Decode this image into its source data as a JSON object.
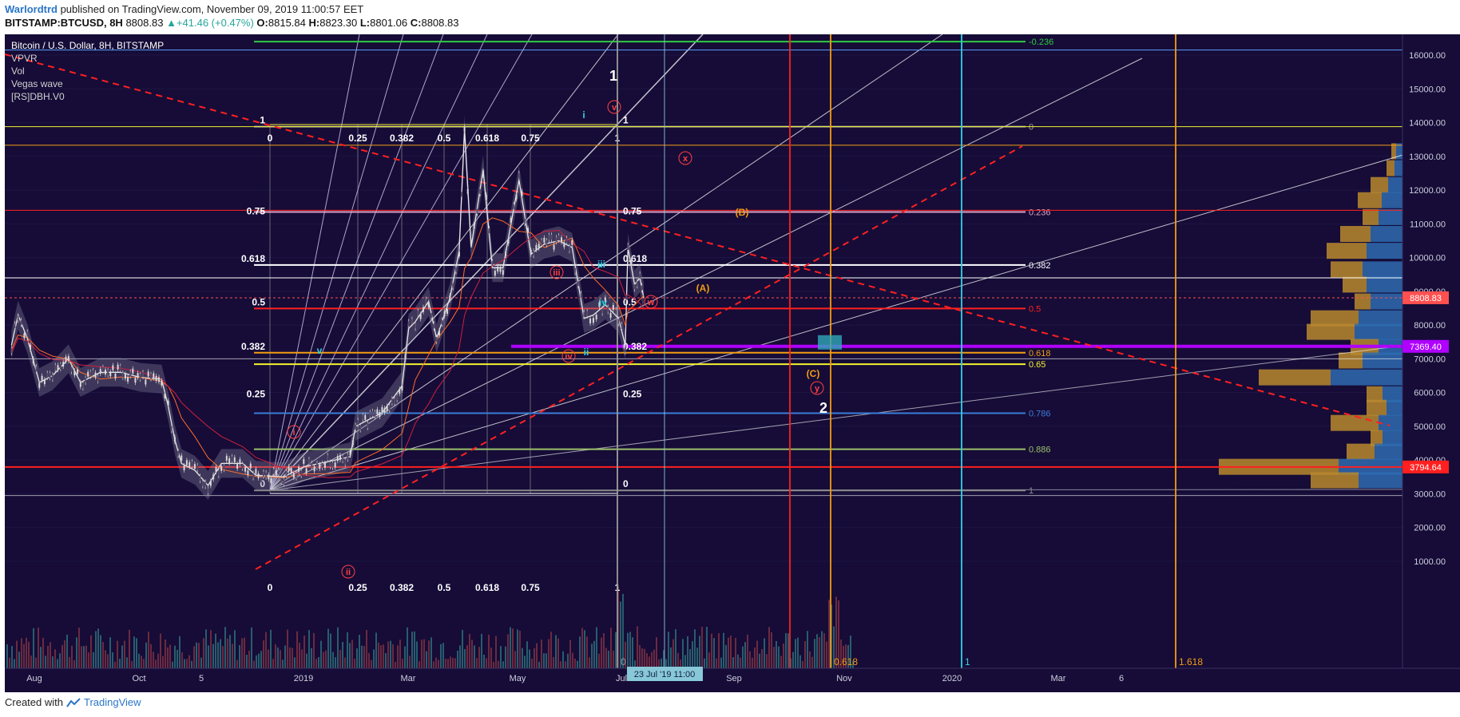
{
  "header": {
    "author": "Warlordtrd",
    "published_text": " published on TradingView.com, November 09, 2019 11:00:57 EET",
    "symbol": "BITSTAMP:BTCUSD, 8H",
    "last": "8808.83",
    "change": "+41.46 (+0.47%)",
    "open_label": "O:",
    "open": "8815.84",
    "high_label": "H:",
    "high": "8823.30",
    "low_label": "L:",
    "low": "8801.06",
    "close_label": "C:",
    "close": "8808.83"
  },
  "legend": {
    "title": "Bitcoin / U.S. Dollar, 8H, BITSTAMP",
    "indicators": [
      "VPVR",
      "Vol",
      "Vegas wave",
      "[RS]DBH.V0"
    ]
  },
  "footer": {
    "created_with": "Created with",
    "brand": "TradingView"
  },
  "colors": {
    "background": "#160c37",
    "red": "#ff1f1f",
    "orange": "#f39c12",
    "cyan": "#2fd3e6",
    "purple": "#b000ff",
    "green": "#2ecc40",
    "yellow": "#f2f230",
    "blue": "#3b7dd8"
  },
  "chart_data": {
    "type": "candlestick",
    "symbol": "BITSTAMP:BTCUSD",
    "interval": "8H",
    "ylim": [
      700,
      16700
    ],
    "y_ticks": [
      1000,
      2000,
      3000,
      4000,
      5000,
      6000,
      7000,
      8000,
      9000,
      10000,
      11000,
      12000,
      13000,
      14000,
      15000,
      16000
    ],
    "y_tick_labels": [
      "1000.00",
      "2000.00",
      "3000.00",
      "4000.00",
      "5000.00",
      "6000.00",
      "7000.00",
      "8000.00",
      "9000.00",
      "10000.00",
      "11000.00",
      "12000.00",
      "13000.00",
      "14000.00",
      "15000.00",
      "16000.00"
    ],
    "x_labels": [
      "Aug",
      "Oct",
      "5",
      "2019",
      "Mar",
      "May",
      "Jul",
      "Sep",
      "Nov",
      "2020",
      "Mar",
      "6"
    ],
    "price_markers": [
      {
        "label": "8808.83",
        "price": 8808.83,
        "color": "#ff5050"
      },
      {
        "label": "7369.40",
        "price": 7369.4,
        "color": "#b000ff"
      },
      {
        "label": "3794.64",
        "price": 3794.64,
        "color": "#ff1f1f"
      }
    ],
    "fib_retracement": [
      {
        "label": "-0.236",
        "price": 16400,
        "color": "#2ecc40"
      },
      {
        "label": "0",
        "price": 13880,
        "color": "#9a9a9a"
      },
      {
        "label": "0.236",
        "price": 11350,
        "color": "#e0a0c0"
      },
      {
        "label": "0.382",
        "price": 9780,
        "color": "#ffffff"
      },
      {
        "label": "0.5",
        "price": 8490,
        "color": "#ff2020"
      },
      {
        "label": "0.618",
        "price": 7180,
        "color": "#f39c12"
      },
      {
        "label": "0.65",
        "price": 6840,
        "color": "#f2f230"
      },
      {
        "label": "0.786",
        "price": 5390,
        "color": "#3b7dd8"
      },
      {
        "label": "0.886",
        "price": 4320,
        "color": "#9bc06a"
      },
      {
        "label": "1",
        "price": 3100,
        "color": "#888888"
      }
    ],
    "gann_left_levels": [
      {
        "label": "1",
        "price": 13880
      },
      {
        "label": "0.75",
        "price": 11190
      },
      {
        "label": "0.618",
        "price": 9780
      },
      {
        "label": "0.5",
        "price": 8490
      },
      {
        "label": "0.382",
        "price": 7180
      },
      {
        "label": "0.25",
        "price": 5770
      },
      {
        "label": "0",
        "price": 3100
      }
    ],
    "gann_fan_labels": [
      "0",
      "0.25",
      "0.382",
      "0.5",
      "0.618",
      "0.75",
      "1"
    ],
    "time_fib_labels": [
      "0",
      "0.618",
      "1",
      "1.618"
    ],
    "wave_labels": [
      {
        "text": "1",
        "color": "#ffffff"
      },
      {
        "text": "2",
        "color": "#ffffff"
      },
      {
        "text": "v",
        "color": "#ff4040"
      },
      {
        "text": "x",
        "color": "#ff4040"
      },
      {
        "text": "iii",
        "color": "#ff4040"
      },
      {
        "text": "iv",
        "color": "#ff4040"
      },
      {
        "text": "w",
        "color": "#ff4040"
      },
      {
        "text": "y",
        "color": "#ff4040"
      },
      {
        "text": "ii",
        "color": "#ff4040"
      },
      {
        "text": "i",
        "color": "#ff4040"
      },
      {
        "text": "(A)",
        "color": "#f39c12"
      },
      {
        "text": "(B)",
        "color": "#f39c12"
      },
      {
        "text": "(C)",
        "color": "#f39c12"
      },
      {
        "text": "iii",
        "color": "#2fd3e6"
      },
      {
        "text": "iv",
        "color": "#2fd3e6"
      },
      {
        "text": "ii",
        "color": "#2fd3e6"
      },
      {
        "text": "i",
        "color": "#2fd3e6"
      },
      {
        "text": "v",
        "color": "#2fd3e6"
      }
    ],
    "crosshair_time_label": "23 Jul '19   11:00",
    "price_path": [
      [
        "2018-07-20",
        7400
      ],
      [
        "2018-07-25",
        8300
      ],
      [
        "2018-08-01",
        7600
      ],
      [
        "2018-08-10",
        6300
      ],
      [
        "2018-08-20",
        6500
      ],
      [
        "2018-09-01",
        7000
      ],
      [
        "2018-09-10",
        6300
      ],
      [
        "2018-09-25",
        6600
      ],
      [
        "2018-10-10",
        6600
      ],
      [
        "2018-10-25",
        6450
      ],
      [
        "2018-11-10",
        6400
      ],
      [
        "2018-11-15",
        5600
      ],
      [
        "2018-11-20",
        4600
      ],
      [
        "2018-11-25",
        3900
      ],
      [
        "2018-12-05",
        3700
      ],
      [
        "2018-12-15",
        3250
      ],
      [
        "2018-12-25",
        3900
      ],
      [
        "2019-01-10",
        3900
      ],
      [
        "2019-01-20",
        3550
      ],
      [
        "2019-02-10",
        3500
      ],
      [
        "2019-02-25",
        3800
      ],
      [
        "2019-03-15",
        3950
      ],
      [
        "2019-04-01",
        4100
      ],
      [
        "2019-04-05",
        5000
      ],
      [
        "2019-04-25",
        5400
      ],
      [
        "2019-05-10",
        6200
      ],
      [
        "2019-05-15",
        7900
      ],
      [
        "2019-05-20",
        8100
      ],
      [
        "2019-05-30",
        8700
      ],
      [
        "2019-06-05",
        7600
      ],
      [
        "2019-06-15",
        8800
      ],
      [
        "2019-06-22",
        10200
      ],
      [
        "2019-06-26",
        13800
      ],
      [
        "2019-07-01",
        10300
      ],
      [
        "2019-07-10",
        12600
      ],
      [
        "2019-07-17",
        9700
      ],
      [
        "2019-07-25",
        9700
      ],
      [
        "2019-08-06",
        12300
      ],
      [
        "2019-08-15",
        10100
      ],
      [
        "2019-08-25",
        10400
      ],
      [
        "2019-09-05",
        10500
      ],
      [
        "2019-09-15",
        10300
      ],
      [
        "2019-09-24",
        8200
      ],
      [
        "2019-10-01",
        8300
      ],
      [
        "2019-10-10",
        8600
      ],
      [
        "2019-10-20",
        8200
      ],
      [
        "2019-10-25",
        7400
      ],
      [
        "2019-10-27",
        10300
      ],
      [
        "2019-11-01",
        9200
      ],
      [
        "2019-11-05",
        9400
      ],
      [
        "2019-11-08",
        8800
      ]
    ]
  }
}
